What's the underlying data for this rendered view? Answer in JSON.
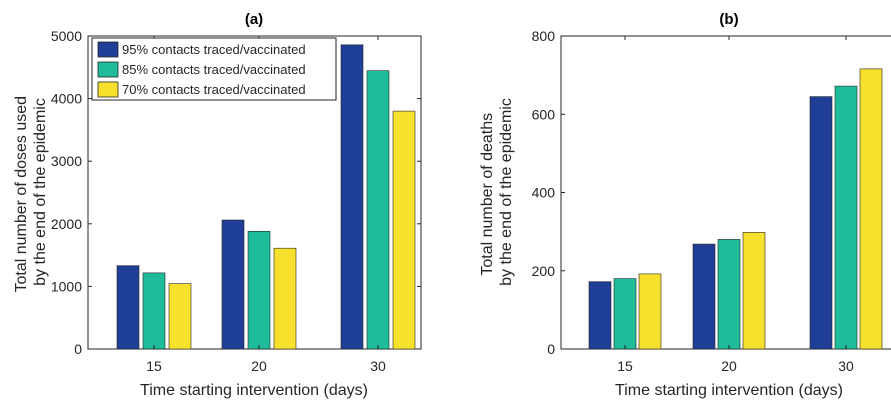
{
  "colors": {
    "series_95": "#1f3f96",
    "series_85": "#1ebc9a",
    "series_70": "#f7e12c",
    "axis": "#262626"
  },
  "chart_data": [
    {
      "type": "bar",
      "title": "(a)",
      "xlabel": "Time starting intervention (days)",
      "ylabel": [
        "Total number of doses used",
        "by the end of the epidemic"
      ],
      "categories": [
        "15",
        "20",
        "30"
      ],
      "ylim": [
        0,
        5000
      ],
      "yticks": [
        0,
        1000,
        2000,
        3000,
        4000,
        5000
      ],
      "grid": false,
      "legend_position": "top-left",
      "series": [
        {
          "name": "95% contacts traced/vaccinated",
          "values": [
            1330,
            2060,
            4860
          ]
        },
        {
          "name": "85% contacts traced/vaccinated",
          "values": [
            1215,
            1880,
            4445
          ]
        },
        {
          "name": "70% contacts traced/vaccinated",
          "values": [
            1045,
            1610,
            3800
          ]
        }
      ]
    },
    {
      "type": "bar",
      "title": "(b)",
      "xlabel": "Time starting intervention (days)",
      "ylabel": [
        "Total number of deaths",
        "by the end of the epidemic"
      ],
      "categories": [
        "15",
        "20",
        "30"
      ],
      "ylim": [
        0,
        800
      ],
      "yticks": [
        0,
        200,
        400,
        600,
        800
      ],
      "grid": false,
      "series": [
        {
          "values": [
            172,
            268,
            645
          ]
        },
        {
          "values": [
            180,
            280,
            672
          ]
        },
        {
          "values": [
            192,
            298,
            716
          ]
        }
      ]
    }
  ]
}
